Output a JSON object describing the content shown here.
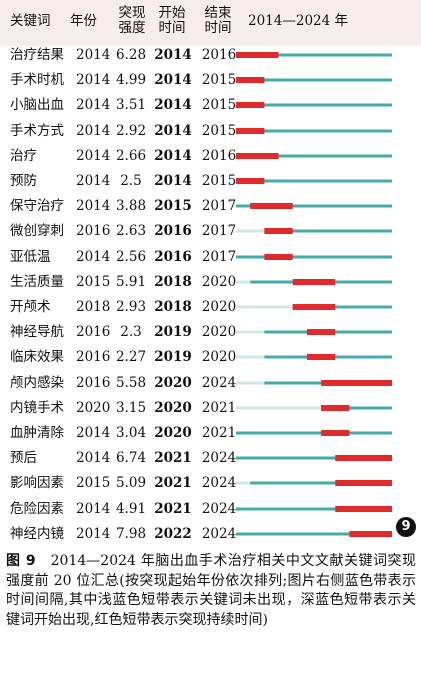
{
  "header": {
    "keyword": "关键词",
    "year": "年份",
    "strength_l1": "突现",
    "strength_l2": "强度",
    "start_l1": "开始",
    "start_l2": "时间",
    "end_l1": "结束",
    "end_l2": "时间",
    "range": "2014—2024 年"
  },
  "colors": {
    "dark_blue": "#46aaa8",
    "light_blue": "#cde8e6",
    "red": "#e02a2c",
    "header_bg": "#f7ecec"
  },
  "chart_data": {
    "type": "table",
    "x_range": [
      2014,
      2024
    ],
    "rows": [
      {
        "keyword": "治疗结果",
        "year": "2014",
        "strength": "6.28",
        "start": "2014",
        "end": "2016"
      },
      {
        "keyword": "手术时机",
        "year": "2014",
        "strength": "4.99",
        "start": "2014",
        "end": "2015"
      },
      {
        "keyword": "小脑出血",
        "year": "2014",
        "strength": "3.51",
        "start": "2014",
        "end": "2015"
      },
      {
        "keyword": "手术方式",
        "year": "2014",
        "strength": "2.92",
        "start": "2014",
        "end": "2015"
      },
      {
        "keyword": "治疗",
        "year": "2014",
        "strength": "2.66",
        "start": "2014",
        "end": "2016"
      },
      {
        "keyword": "预防",
        "year": "2014",
        "strength": "2.5",
        "start": "2014",
        "end": "2015"
      },
      {
        "keyword": "保守治疗",
        "year": "2014",
        "strength": "3.88",
        "start": "2015",
        "end": "2017"
      },
      {
        "keyword": "微创穿刺",
        "year": "2016",
        "strength": "2.63",
        "start": "2016",
        "end": "2017"
      },
      {
        "keyword": "亚低温",
        "year": "2014",
        "strength": "2.56",
        "start": "2016",
        "end": "2017"
      },
      {
        "keyword": "生活质量",
        "year": "2015",
        "strength": "5.91",
        "start": "2018",
        "end": "2020"
      },
      {
        "keyword": "开颅术",
        "year": "2018",
        "strength": "2.93",
        "start": "2018",
        "end": "2020"
      },
      {
        "keyword": "神经导航",
        "year": "2016",
        "strength": "2.3",
        "start": "2019",
        "end": "2020"
      },
      {
        "keyword": "临床效果",
        "year": "2016",
        "strength": "2.27",
        "start": "2019",
        "end": "2020"
      },
      {
        "keyword": "颅内感染",
        "year": "2016",
        "strength": "5.58",
        "start": "2020",
        "end": "2024"
      },
      {
        "keyword": "内镜手术",
        "year": "2020",
        "strength": "3.15",
        "start": "2020",
        "end": "2021"
      },
      {
        "keyword": "血肿清除",
        "year": "2014",
        "strength": "3.04",
        "start": "2020",
        "end": "2021"
      },
      {
        "keyword": "预后",
        "year": "2014",
        "strength": "6.74",
        "start": "2021",
        "end": "2024"
      },
      {
        "keyword": "影响因素",
        "year": "2015",
        "strength": "5.09",
        "start": "2021",
        "end": "2024"
      },
      {
        "keyword": "危险因素",
        "year": "2014",
        "strength": "4.91",
        "start": "2021",
        "end": "2024"
      },
      {
        "keyword": "神经内镜",
        "year": "2014",
        "strength": "7.98",
        "start": "2022",
        "end": "2024"
      }
    ]
  },
  "badge": "9",
  "caption": {
    "fig_label": "图 9",
    "text": "　2014—2024 年脑出血手术治疗相关中文文献关键词突现强度前 20 位汇总(按突现起始年份依次排列;图片右侧蓝色带表示时间间隔,其中浅蓝色短带表示关键词未出现，深蓝色短带表示关键词开始出现,红色短带表示突现持续时间)"
  }
}
